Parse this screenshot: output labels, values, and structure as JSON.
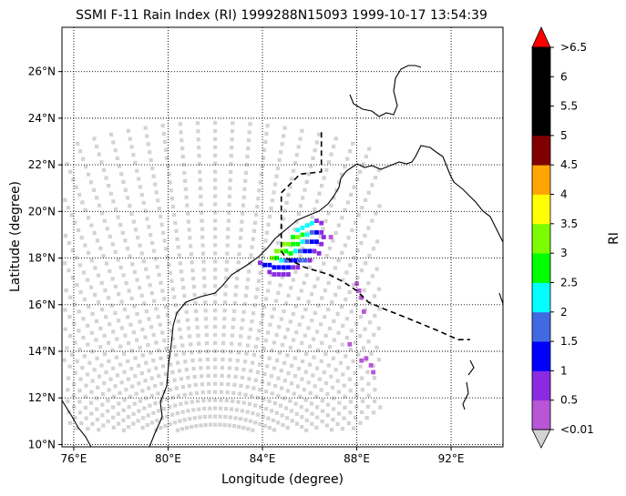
{
  "title": "SSMI F-11 Rain Index (RI) 1999288N15093 1999-10-17 13:54:39",
  "xlabel": "Longitude (degree)",
  "ylabel": "Latitude (degree)",
  "x_ticks": [
    {
      "value": 76,
      "label": "76°E"
    },
    {
      "value": 80,
      "label": "80°E"
    },
    {
      "value": 84,
      "label": "84°E"
    },
    {
      "value": 88,
      "label": "88°E"
    },
    {
      "value": 92,
      "label": "92°E"
    }
  ],
  "y_ticks": [
    {
      "value": 10,
      "label": "10°N"
    },
    {
      "value": 12,
      "label": "12°N"
    },
    {
      "value": 14,
      "label": "14°N"
    },
    {
      "value": 16,
      "label": "16°N"
    },
    {
      "value": 18,
      "label": "18°N"
    },
    {
      "value": 20,
      "label": "20°N"
    },
    {
      "value": 22,
      "label": "22°N"
    },
    {
      "value": 24,
      "label": "24°N"
    },
    {
      "value": 26,
      "label": "26°N"
    }
  ],
  "colorbar": {
    "label": "RI",
    "bins": [
      {
        "label": "<0.01",
        "color": "#b856d7"
      },
      {
        "label": "0.5",
        "color": "#8a2be2"
      },
      {
        "label": "1",
        "color": "#0000ff"
      },
      {
        "label": "1.5",
        "color": "#4169e1"
      },
      {
        "label": "2",
        "color": "#00ffff"
      },
      {
        "label": "2.5",
        "color": "#00ff00"
      },
      {
        "label": "3",
        "color": "#7cfc00"
      },
      {
        "label": "3.5",
        "color": "#ffff00"
      },
      {
        "label": "4",
        "color": "#ffa500"
      },
      {
        "label": "4.5",
        "color": "#800000"
      },
      {
        "label": "5",
        "color": "#000000"
      },
      {
        "label": "5.5",
        "color": "#000000"
      },
      {
        "label": "6",
        "color": "#000000"
      }
    ],
    "top_label": ">6.5",
    "over_color": "#ff0000",
    "under_color": "#d3d3d3"
  },
  "chart_data": {
    "type": "scatter",
    "title": "SSMI F-11 Rain Index (RI) 1999288N15093 1999-10-17 13:54:39",
    "xlabel": "Longitude (degree)",
    "ylabel": "Latitude (degree)",
    "xlim": [
      75.5,
      94.2
    ],
    "ylim": [
      9.9,
      27.9
    ],
    "grid": true,
    "swath_color": "#d3d3d3",
    "track": [
      [
        86.5,
        23.4
      ],
      [
        86.5,
        21.7
      ],
      [
        85.6,
        21.6
      ],
      [
        84.8,
        20.8
      ],
      [
        84.8,
        18.3
      ],
      [
        85.0,
        18.0
      ],
      [
        85.8,
        17.6
      ],
      [
        86.8,
        17.3
      ],
      [
        87.4,
        17.0
      ],
      [
        88.0,
        16.6
      ],
      [
        88.5,
        16.1
      ],
      [
        89.2,
        15.8
      ],
      [
        90.2,
        15.4
      ],
      [
        91.4,
        14.9
      ],
      [
        92.3,
        14.5
      ],
      [
        92.8,
        14.5
      ]
    ],
    "rain_points": [
      {
        "lon": 85.5,
        "lat": 19.2,
        "ri": 2.2
      },
      {
        "lon": 85.7,
        "lat": 19.3,
        "ri": 2.2
      },
      {
        "lon": 85.9,
        "lat": 19.4,
        "ri": 2.2
      },
      {
        "lon": 86.1,
        "lat": 19.5,
        "ri": 2.2
      },
      {
        "lon": 86.3,
        "lat": 19.6,
        "ri": 0.7
      },
      {
        "lon": 86.5,
        "lat": 19.5,
        "ri": 0.7
      },
      {
        "lon": 85.3,
        "lat": 18.9,
        "ri": 2.7
      },
      {
        "lon": 85.5,
        "lat": 18.9,
        "ri": 3.2
      },
      {
        "lon": 85.7,
        "lat": 19.0,
        "ri": 2.7
      },
      {
        "lon": 85.9,
        "lat": 19.0,
        "ri": 2.2
      },
      {
        "lon": 86.1,
        "lat": 19.1,
        "ri": 1.7
      },
      {
        "lon": 86.3,
        "lat": 19.1,
        "ri": 1.2
      },
      {
        "lon": 86.5,
        "lat": 19.1,
        "ri": 0.7
      },
      {
        "lon": 86.6,
        "lat": 18.9,
        "ri": 0.7
      },
      {
        "lon": 84.9,
        "lat": 18.6,
        "ri": 3.2
      },
      {
        "lon": 85.1,
        "lat": 18.6,
        "ri": 3.2
      },
      {
        "lon": 85.3,
        "lat": 18.6,
        "ri": 2.7
      },
      {
        "lon": 85.5,
        "lat": 18.6,
        "ri": 2.7
      },
      {
        "lon": 85.7,
        "lat": 18.7,
        "ri": 2.2
      },
      {
        "lon": 85.9,
        "lat": 18.7,
        "ri": 1.7
      },
      {
        "lon": 86.1,
        "lat": 18.7,
        "ri": 1.2
      },
      {
        "lon": 86.3,
        "lat": 18.7,
        "ri": 1.2
      },
      {
        "lon": 86.5,
        "lat": 18.6,
        "ri": 0.7
      },
      {
        "lon": 84.6,
        "lat": 18.3,
        "ri": 3.2
      },
      {
        "lon": 84.8,
        "lat": 18.3,
        "ri": 3.2
      },
      {
        "lon": 85.0,
        "lat": 18.3,
        "ri": 2.7
      },
      {
        "lon": 85.2,
        "lat": 18.2,
        "ri": 2.7
      },
      {
        "lon": 85.4,
        "lat": 18.3,
        "ri": 2.2
      },
      {
        "lon": 85.6,
        "lat": 18.3,
        "ri": 1.7
      },
      {
        "lon": 85.8,
        "lat": 18.3,
        "ri": 1.2
      },
      {
        "lon": 86.0,
        "lat": 18.3,
        "ri": 1.2
      },
      {
        "lon": 86.2,
        "lat": 18.3,
        "ri": 0.7
      },
      {
        "lon": 86.4,
        "lat": 18.2,
        "ri": 0.7
      },
      {
        "lon": 84.4,
        "lat": 18.0,
        "ri": 3.2
      },
      {
        "lon": 84.6,
        "lat": 18.0,
        "ri": 2.7
      },
      {
        "lon": 84.8,
        "lat": 17.9,
        "ri": 2.2
      },
      {
        "lon": 85.0,
        "lat": 17.9,
        "ri": 1.7
      },
      {
        "lon": 85.2,
        "lat": 17.9,
        "ri": 1.2
      },
      {
        "lon": 85.4,
        "lat": 17.9,
        "ri": 1.2
      },
      {
        "lon": 85.6,
        "lat": 17.9,
        "ri": 1.7
      },
      {
        "lon": 85.8,
        "lat": 17.9,
        "ri": 1.7
      },
      {
        "lon": 86.0,
        "lat": 17.9,
        "ri": 0.7
      },
      {
        "lon": 84.1,
        "lat": 17.7,
        "ri": 1.2
      },
      {
        "lon": 84.3,
        "lat": 17.7,
        "ri": 1.2
      },
      {
        "lon": 84.5,
        "lat": 17.6,
        "ri": 1.2
      },
      {
        "lon": 84.7,
        "lat": 17.6,
        "ri": 1.2
      },
      {
        "lon": 84.9,
        "lat": 17.6,
        "ri": 1.2
      },
      {
        "lon": 85.1,
        "lat": 17.6,
        "ri": 1.2
      },
      {
        "lon": 85.3,
        "lat": 17.6,
        "ri": 0.7
      },
      {
        "lon": 85.5,
        "lat": 17.6,
        "ri": 0.7
      },
      {
        "lon": 84.3,
        "lat": 17.4,
        "ri": 0.7
      },
      {
        "lon": 84.5,
        "lat": 17.3,
        "ri": 0.7
      },
      {
        "lon": 84.7,
        "lat": 17.3,
        "ri": 0.7
      },
      {
        "lon": 84.9,
        "lat": 17.3,
        "ri": 0.7
      },
      {
        "lon": 85.1,
        "lat": 17.3,
        "ri": 0.7
      },
      {
        "lon": 83.9,
        "lat": 17.8,
        "ri": 0.7
      },
      {
        "lon": 88.0,
        "lat": 16.9,
        "ri": 0.3
      },
      {
        "lon": 88.1,
        "lat": 16.6,
        "ri": 0.3
      },
      {
        "lon": 88.2,
        "lat": 16.3,
        "ri": 0.3
      },
      {
        "lon": 88.3,
        "lat": 15.7,
        "ri": 0.3
      },
      {
        "lon": 87.7,
        "lat": 14.3,
        "ri": 0.3
      },
      {
        "lon": 88.2,
        "lat": 13.6,
        "ri": 0.3
      },
      {
        "lon": 88.4,
        "lat": 13.7,
        "ri": 0.3
      },
      {
        "lon": 88.6,
        "lat": 13.4,
        "ri": 0.3
      },
      {
        "lon": 88.7,
        "lat": 13.1,
        "ri": 0.3
      },
      {
        "lon": 86.9,
        "lat": 18.9,
        "ri": 0.3
      }
    ]
  }
}
